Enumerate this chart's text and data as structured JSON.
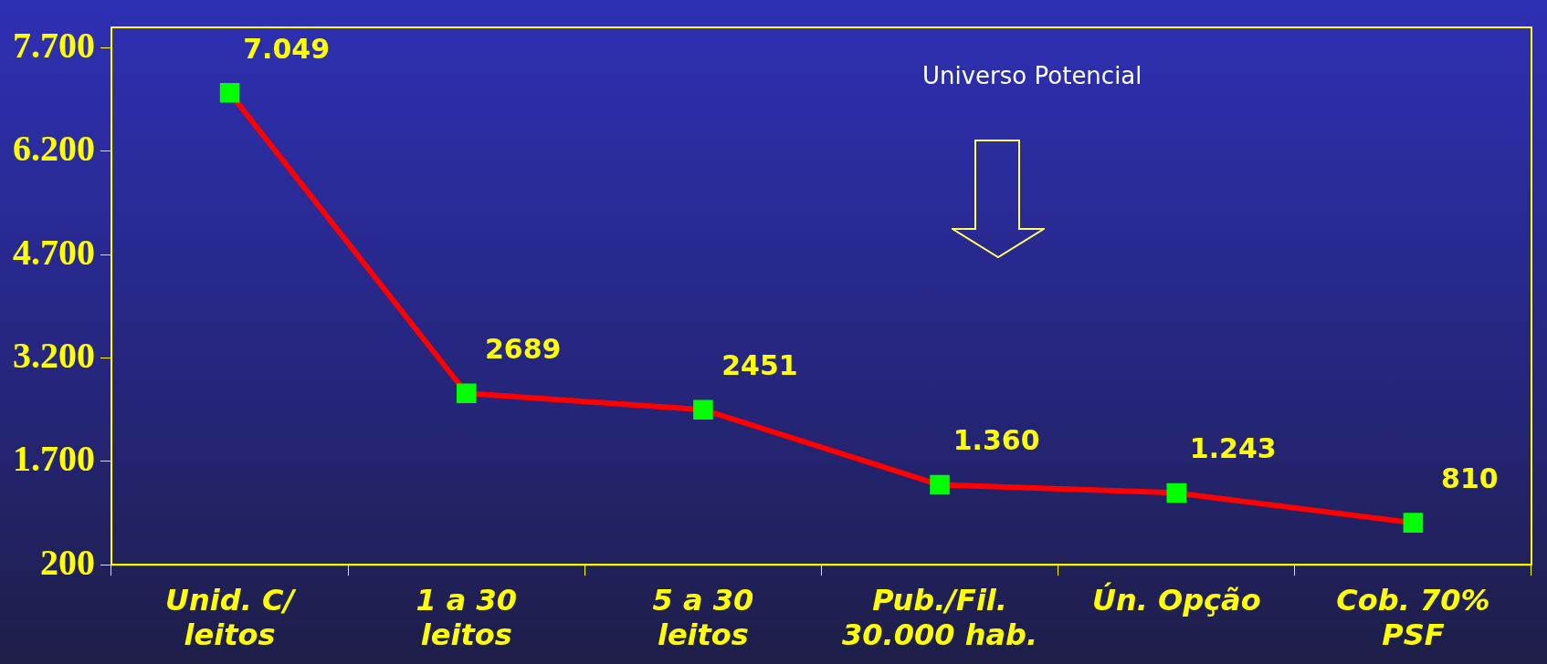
{
  "chart_data": {
    "type": "line",
    "categories": [
      "Unid. C/\nleitos",
      "1 a 30\nleitos",
      "5 a 30\nleitos",
      "Pub./Fil.\n30.000 hab.",
      "Ún. Opção",
      "Cob. 70%\nPSF"
    ],
    "series": [
      {
        "color": "#ff0000",
        "colors": [
          "#00ff00",
          "#00ff00",
          "#00ff00",
          "#00ff00",
          "#00ff00",
          "#00ff00"
        ],
        "values": [
          7049,
          2689,
          2451,
          1360,
          1243,
          810
        ],
        "value_labels": [
          "7.049",
          "2689",
          "2451",
          "1.360",
          "1.243",
          "810"
        ]
      }
    ],
    "ylim": [
      200,
      8000
    ],
    "yticks": [
      {
        "value": 200,
        "label": "200"
      },
      {
        "value": 1700,
        "label": "1.700"
      },
      {
        "value": 3200,
        "label": "3.200"
      },
      {
        "value": 4700,
        "label": "4.700"
      },
      {
        "value": 6200,
        "label": "6.200"
      },
      {
        "value": 7700,
        "label": "7.700"
      }
    ],
    "annotations": [
      "Universo Potencial"
    ],
    "legend": false,
    "grid": false,
    "marker": "square",
    "line_style": "solid"
  }
}
